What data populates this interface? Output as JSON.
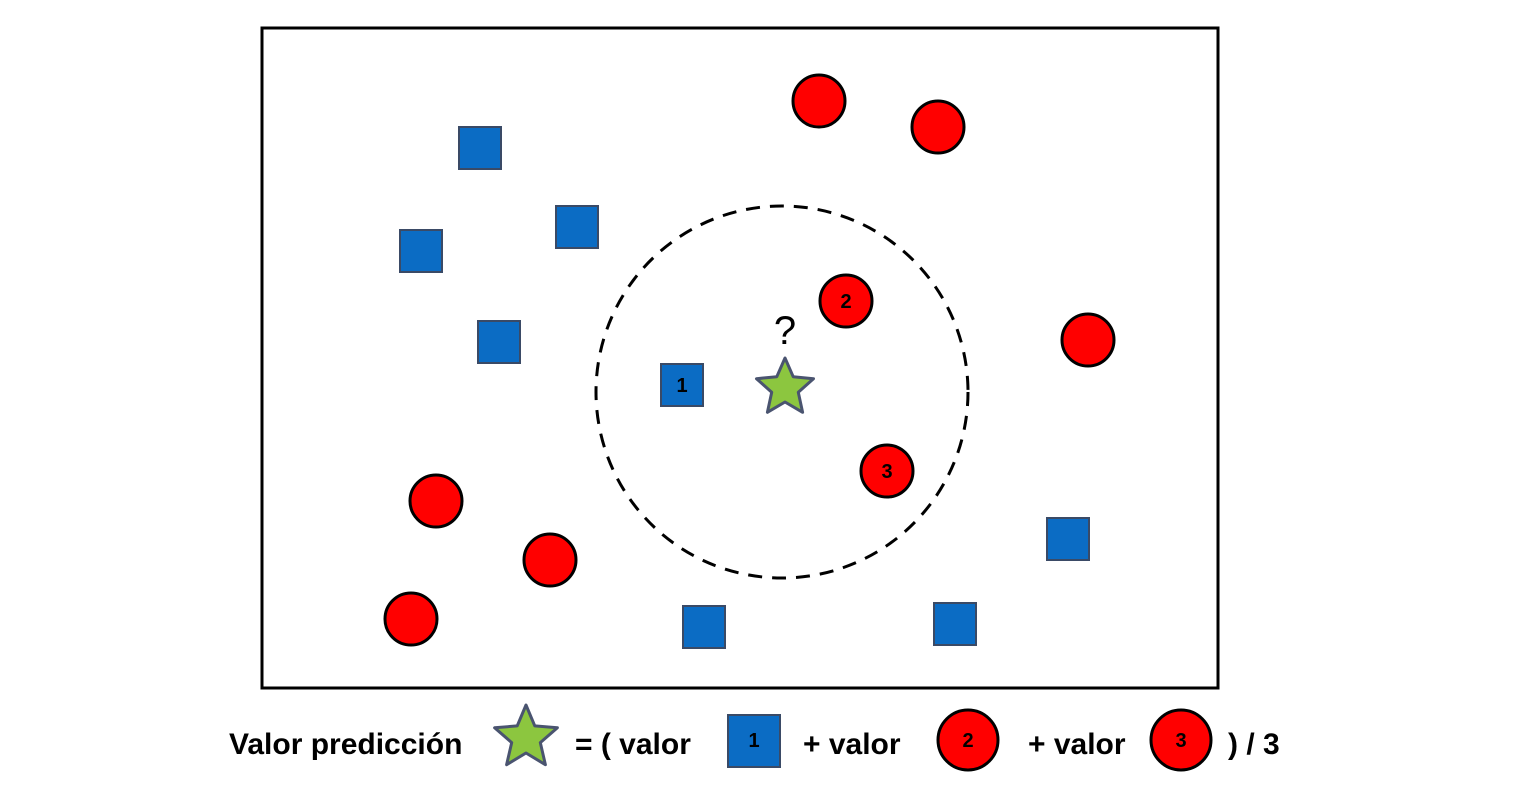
{
  "colors": {
    "square_fill": "#0B6CC4",
    "square_stroke": "#3A4A66",
    "circle_fill": "#FF0000",
    "circle_stroke": "#000000",
    "star_fill": "#8CC63F",
    "star_stroke": "#4A5470",
    "frame_stroke": "#000000"
  },
  "query_mark": "?",
  "neighbor_labels": {
    "square_1": "1",
    "circle_2": "2",
    "circle_3": "3"
  },
  "formula": {
    "label": "Valor predicción",
    "open": "= ( valor",
    "plus_1": "+ valor",
    "plus_2": "+ valor",
    "close": ") / 3",
    "square_label": "1",
    "circle_2_label": "2",
    "circle_3_label": "3"
  }
}
